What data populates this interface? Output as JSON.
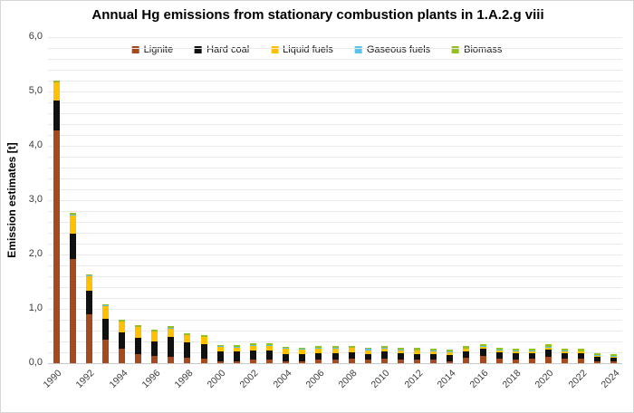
{
  "chart_data": {
    "type": "bar",
    "stacked": true,
    "title": "Annual Hg emissions from stationary combustion plants in 1.A.2.g viii",
    "ylabel": "Emission estimates [t]",
    "xlabel": "",
    "ylim": [
      0,
      6
    ],
    "ytick_labels": [
      "0,0",
      "1,0",
      "2,0",
      "3,0",
      "4,0",
      "5,0",
      "6,0"
    ],
    "minor_grid_step": 0.2,
    "grid": true,
    "legend_position": "top-center",
    "xtick_every": 2,
    "categories": [
      "1990",
      "1991",
      "1992",
      "1993",
      "1994",
      "1995",
      "1996",
      "1997",
      "1998",
      "1999",
      "2000",
      "2001",
      "2002",
      "2003",
      "2004",
      "2005",
      "2006",
      "2007",
      "2008",
      "2009",
      "2010",
      "2011",
      "2012",
      "2013",
      "2014",
      "2015",
      "2016",
      "2017",
      "2018",
      "2019",
      "2020",
      "2021",
      "2022",
      "2023",
      "2024"
    ],
    "series": [
      {
        "name": "Lignite",
        "color": "#A54A1E",
        "values": [
          4.28,
          1.92,
          0.9,
          0.44,
          0.27,
          0.16,
          0.13,
          0.12,
          0.1,
          0.09,
          0.04,
          0.04,
          0.06,
          0.07,
          0.04,
          0.04,
          0.06,
          0.07,
          0.09,
          0.06,
          0.08,
          0.07,
          0.06,
          0.06,
          0.04,
          0.1,
          0.14,
          0.08,
          0.07,
          0.08,
          0.11,
          0.09,
          0.08,
          0.04,
          0.03
        ]
      },
      {
        "name": "Hard coal",
        "color": "#111111",
        "values": [
          0.55,
          0.47,
          0.43,
          0.37,
          0.3,
          0.3,
          0.27,
          0.37,
          0.28,
          0.26,
          0.18,
          0.17,
          0.17,
          0.17,
          0.13,
          0.12,
          0.12,
          0.12,
          0.11,
          0.1,
          0.13,
          0.11,
          0.11,
          0.11,
          0.11,
          0.11,
          0.12,
          0.12,
          0.12,
          0.1,
          0.14,
          0.1,
          0.1,
          0.08,
          0.07
        ]
      },
      {
        "name": "Liquid fuels",
        "color": "#FFC000",
        "values": [
          0.33,
          0.33,
          0.27,
          0.24,
          0.19,
          0.2,
          0.18,
          0.15,
          0.13,
          0.13,
          0.08,
          0.08,
          0.09,
          0.08,
          0.1,
          0.09,
          0.09,
          0.08,
          0.08,
          0.08,
          0.06,
          0.06,
          0.06,
          0.05,
          0.05,
          0.05,
          0.04,
          0.04,
          0.03,
          0.04,
          0.04,
          0.03,
          0.03,
          0.02,
          0.02
        ]
      },
      {
        "name": "Gaseous fuels",
        "color": "#5BC3EA",
        "values": [
          0.01,
          0.01,
          0.01,
          0.01,
          0.01,
          0.01,
          0.01,
          0.01,
          0.01,
          0.01,
          0.01,
          0.01,
          0.01,
          0.01,
          0.01,
          0.02,
          0.01,
          0.01,
          0.01,
          0.02,
          0.01,
          0.01,
          0.01,
          0.01,
          0.01,
          0.01,
          0.01,
          0.01,
          0.01,
          0.01,
          0.01,
          0.01,
          0.01,
          0.01,
          0.01
        ]
      },
      {
        "name": "Biomass",
        "color": "#94C11F",
        "values": [
          0.03,
          0.03,
          0.03,
          0.03,
          0.03,
          0.03,
          0.03,
          0.03,
          0.03,
          0.03,
          0.03,
          0.03,
          0.03,
          0.03,
          0.02,
          0.02,
          0.03,
          0.03,
          0.03,
          0.02,
          0.03,
          0.03,
          0.04,
          0.03,
          0.04,
          0.04,
          0.04,
          0.04,
          0.04,
          0.04,
          0.05,
          0.04,
          0.04,
          0.04,
          0.04
        ]
      }
    ]
  },
  "colors": {
    "gridline": "#e9e9e9",
    "axis_line": "#c9c9c9",
    "tick_text": "#3b3b3b",
    "title_text": "#000000",
    "background": "#ffffff"
  }
}
